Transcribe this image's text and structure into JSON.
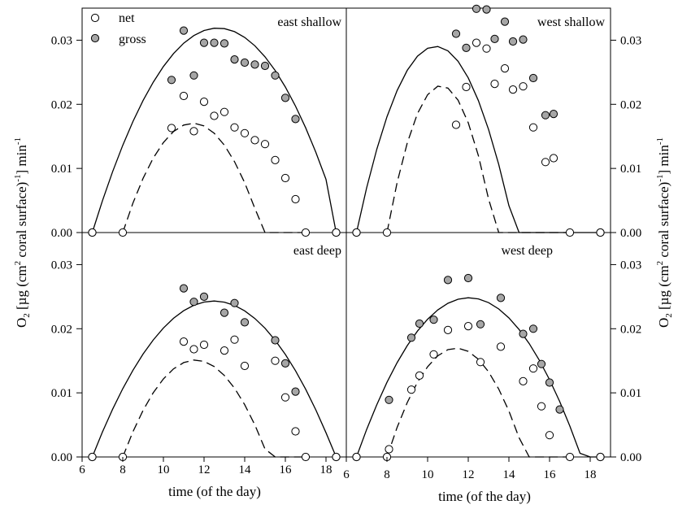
{
  "figure": {
    "ylabel": "O2 [µg (cm2 coral surface)-1] min-1",
    "xlabel_left": "time (of the day)",
    "xlabel_right": "time (of the day)",
    "legend": [
      {
        "name": "net",
        "fill": "#ffffff"
      },
      {
        "name": "gross",
        "fill": "#a6a6a6"
      }
    ]
  },
  "chart_data": [
    {
      "type": "scatter",
      "title": "east shallow",
      "xlim": [
        6,
        19
      ],
      "ylim": [
        0,
        0.035
      ],
      "series": [
        {
          "name": "net",
          "points": [
            [
              6.5,
              0
            ],
            [
              8,
              0
            ],
            [
              10.4,
              0.0163
            ],
            [
              11,
              0.0213
            ],
            [
              11.5,
              0.0158
            ],
            [
              12,
              0.0204
            ],
            [
              12.5,
              0.0182
            ],
            [
              13,
              0.0188
            ],
            [
              13.5,
              0.0164
            ],
            [
              14,
              0.0155
            ],
            [
              14.5,
              0.0144
            ],
            [
              15,
              0.0138
            ],
            [
              15.5,
              0.0113
            ],
            [
              16,
              0.0085
            ],
            [
              16.5,
              0.0052
            ],
            [
              17,
              0
            ],
            [
              18.5,
              0
            ]
          ]
        },
        {
          "name": "gross",
          "points": [
            [
              6.5,
              0
            ],
            [
              10.4,
              0.0238
            ],
            [
              11,
              0.0315
            ],
            [
              11.5,
              0.0245
            ],
            [
              12,
              0.0296
            ],
            [
              12.5,
              0.0296
            ],
            [
              13,
              0.0295
            ],
            [
              13.5,
              0.027
            ],
            [
              14,
              0.0265
            ],
            [
              14.5,
              0.0262
            ],
            [
              15,
              0.026
            ],
            [
              15.5,
              0.0245
            ],
            [
              16,
              0.021
            ],
            [
              16.5,
              0.0177
            ],
            [
              18.5,
              0
            ]
          ]
        }
      ],
      "fits": [
        {
          "series": "gross",
          "style": "solid",
          "x": [
            6.5,
            7,
            7.5,
            8,
            8.5,
            9,
            9.5,
            10,
            10.5,
            11,
            11.5,
            12,
            12.5,
            13,
            13.5,
            14,
            14.5,
            15,
            15.5,
            16,
            16.5,
            17,
            17.5,
            18,
            18.5
          ],
          "y": [
            0,
            0.00496,
            0.00949,
            0.01361,
            0.01731,
            0.02059,
            0.02345,
            0.0259,
            0.02793,
            0.02954,
            0.03073,
            0.03151,
            0.03187,
            0.03181,
            0.03133,
            0.03044,
            0.02913,
            0.0274,
            0.02526,
            0.0227,
            0.01972,
            0.01633,
            0.01252,
            0.00829,
            0
          ]
        },
        {
          "series": "net",
          "style": "dashed",
          "x": [
            8,
            8.5,
            9,
            9.5,
            10,
            10.5,
            11,
            11.5,
            12,
            12.5,
            13,
            13.5,
            14,
            14.5,
            15,
            15.5,
            16,
            16.5,
            17
          ],
          "y": [
            0,
            0.00459,
            0.00846,
            0.01161,
            0.01404,
            0.01576,
            0.01677,
            0.01706,
            0.01663,
            0.01548,
            0.01363,
            0.01105,
            0.00777,
            0.00376,
            0,
            0,
            0,
            0,
            0
          ]
        }
      ]
    },
    {
      "type": "scatter",
      "title": "west shallow",
      "xlim": [
        6,
        19
      ],
      "ylim": [
        0,
        0.035
      ],
      "series": [
        {
          "name": "net",
          "points": [
            [
              6.5,
              0
            ],
            [
              8,
              0
            ],
            [
              11.4,
              0.0168
            ],
            [
              11.9,
              0.0227
            ],
            [
              12.4,
              0.0296
            ],
            [
              12.9,
              0.0287
            ],
            [
              13.3,
              0.0232
            ],
            [
              13.8,
              0.0256
            ],
            [
              14.2,
              0.0223
            ],
            [
              14.7,
              0.0228
            ],
            [
              15.2,
              0.0164
            ],
            [
              15.8,
              0.011
            ],
            [
              16.2,
              0.0116
            ],
            [
              17,
              0
            ],
            [
              18.5,
              0
            ]
          ]
        },
        {
          "name": "gross",
          "points": [
            [
              6.5,
              0
            ],
            [
              11.4,
              0.031
            ],
            [
              11.9,
              0.0288
            ],
            [
              12.4,
              0.0349
            ],
            [
              12.9,
              0.0348
            ],
            [
              13.3,
              0.0302
            ],
            [
              13.8,
              0.0329
            ],
            [
              14.2,
              0.0298
            ],
            [
              14.7,
              0.0301
            ],
            [
              15.2,
              0.0241
            ],
            [
              15.8,
              0.0183
            ],
            [
              16.2,
              0.0185
            ],
            [
              18.5,
              0
            ]
          ]
        }
      ],
      "fits": [
        {
          "series": "gross",
          "style": "solid",
          "x": [
            6.5,
            7,
            7.5,
            8,
            8.5,
            9,
            9.5,
            10,
            10.5,
            11,
            11.5,
            12,
            12.5,
            13,
            13.5,
            14,
            14.5,
            15,
            15.5,
            16,
            16.5,
            17,
            17.5,
            18,
            18.5
          ],
          "y": [
            0,
            0.00698,
            0.013,
            0.01806,
            0.02216,
            0.02531,
            0.0275,
            0.02874,
            0.02902,
            0.02834,
            0.02671,
            0.02412,
            0.02057,
            0.01607,
            0.01062,
            0.0042,
            0,
            0,
            0,
            0,
            0,
            0,
            0,
            0,
            0
          ]
        },
        {
          "series": "net",
          "style": "dashed",
          "x": [
            8,
            8.5,
            9,
            9.5,
            10,
            10.5,
            11,
            11.5,
            12,
            12.5,
            13,
            13.5,
            14,
            14.5,
            15,
            15.5,
            16,
            16.5,
            17
          ],
          "y": [
            0,
            0.0078,
            0.01399,
            0.01855,
            0.0215,
            0.02283,
            0.02254,
            0.02064,
            0.01712,
            0.01198,
            0.00522,
            0,
            0,
            0,
            0,
            0,
            0,
            0,
            0
          ]
        }
      ]
    },
    {
      "type": "scatter",
      "title": "east deep",
      "xlim": [
        6,
        19
      ],
      "ylim": [
        0,
        0.035
      ],
      "series": [
        {
          "name": "net",
          "points": [
            [
              6.5,
              0
            ],
            [
              8,
              0
            ],
            [
              11,
              0.018
            ],
            [
              11.5,
              0.0168
            ],
            [
              12,
              0.0175
            ],
            [
              13,
              0.0166
            ],
            [
              13.5,
              0.0183
            ],
            [
              14,
              0.0142
            ],
            [
              15.5,
              0.015
            ],
            [
              16,
              0.0093
            ],
            [
              16.5,
              0.004
            ],
            [
              17,
              0
            ],
            [
              18.5,
              0
            ]
          ]
        },
        {
          "name": "gross",
          "points": [
            [
              6.5,
              0
            ],
            [
              11,
              0.0263
            ],
            [
              11.5,
              0.0242
            ],
            [
              12,
              0.025
            ],
            [
              13,
              0.0225
            ],
            [
              13.5,
              0.024
            ],
            [
              14,
              0.021
            ],
            [
              15.5,
              0.0182
            ],
            [
              16,
              0.0146
            ],
            [
              16.5,
              0.0102
            ],
            [
              18.5,
              0
            ]
          ]
        }
      ],
      "fits": [
        {
          "series": "gross",
          "style": "solid",
          "x": [
            6.5,
            7,
            7.5,
            8,
            8.5,
            9,
            9.5,
            10,
            10.5,
            11,
            11.5,
            12,
            12.5,
            13,
            13.5,
            14,
            14.5,
            15,
            15.5,
            16,
            16.5,
            17,
            17.5,
            18,
            18.5
          ],
          "y": [
            0,
            0.00389,
            0.00744,
            0.01065,
            0.01352,
            0.01606,
            0.01825,
            0.02011,
            0.02163,
            0.02281,
            0.02366,
            0.02416,
            0.02432,
            0.02415,
            0.02364,
            0.02279,
            0.0216,
            0.02007,
            0.0182,
            0.01599,
            0.01345,
            0.01056,
            0.00734,
            0.00378,
            0
          ]
        },
        {
          "series": "net",
          "style": "dashed",
          "x": [
            8,
            8.5,
            9,
            9.5,
            10,
            10.5,
            11,
            11.5,
            12,
            12.5,
            13,
            13.5,
            14,
            14.5,
            15,
            15.5,
            16,
            16.5,
            17
          ],
          "y": [
            0,
            0.00393,
            0.00727,
            0.01002,
            0.01218,
            0.01375,
            0.01472,
            0.01511,
            0.0149,
            0.0141,
            0.01271,
            0.01073,
            0.00816,
            0.005,
            0.00124,
            0,
            0,
            0,
            0
          ]
        }
      ]
    },
    {
      "type": "scatter",
      "title": "west deep",
      "xlim": [
        6,
        19
      ],
      "ylim": [
        0,
        0.035
      ],
      "series": [
        {
          "name": "net",
          "points": [
            [
              6.5,
              0
            ],
            [
              8,
              0
            ],
            [
              8.1,
              0.0012
            ],
            [
              9.2,
              0.0105
            ],
            [
              9.6,
              0.0127
            ],
            [
              10.3,
              0.016
            ],
            [
              11,
              0.0198
            ],
            [
              12,
              0.0204
            ],
            [
              12.6,
              0.0148
            ],
            [
              13.6,
              0.0172
            ],
            [
              14.7,
              0.0118
            ],
            [
              15.2,
              0.0138
            ],
            [
              15.6,
              0.0079
            ],
            [
              16,
              0.0034
            ],
            [
              17,
              0
            ],
            [
              18.5,
              0
            ]
          ]
        },
        {
          "name": "gross",
          "points": [
            [
              6.5,
              0
            ],
            [
              8.1,
              0.0089
            ],
            [
              9.2,
              0.0186
            ],
            [
              9.6,
              0.0208
            ],
            [
              10.3,
              0.0214
            ],
            [
              11,
              0.0276
            ],
            [
              12,
              0.0279
            ],
            [
              12.6,
              0.0207
            ],
            [
              13.6,
              0.0248
            ],
            [
              14.7,
              0.0192
            ],
            [
              15.2,
              0.02
            ],
            [
              15.6,
              0.0145
            ],
            [
              16,
              0.0116
            ],
            [
              16.5,
              0.0074
            ],
            [
              18.5,
              0
            ]
          ]
        }
      ],
      "fits": [
        {
          "series": "gross",
          "style": "solid",
          "x": [
            6.5,
            7,
            7.5,
            8,
            8.5,
            9,
            9.5,
            10,
            10.5,
            11,
            11.5,
            12,
            12.5,
            13,
            13.5,
            14,
            14.5,
            15,
            15.5,
            16,
            16.5,
            17,
            17.5,
            18,
            18.5
          ],
          "y": [
            0,
            0.00428,
            0.00816,
            0.01164,
            0.01471,
            0.01737,
            0.01963,
            0.02148,
            0.02293,
            0.02397,
            0.0246,
            0.02483,
            0.02465,
            0.02407,
            0.02308,
            0.02169,
            0.01989,
            0.01768,
            0.01507,
            0.01205,
            0.00863,
            0.0048,
            0.00057,
            0,
            0
          ]
        },
        {
          "series": "net",
          "style": "dashed",
          "x": [
            8,
            8.5,
            9,
            9.5,
            10,
            10.5,
            11,
            11.5,
            12,
            12.5,
            13,
            13.5,
            14,
            14.5,
            15,
            15.5,
            16,
            16.5,
            17
          ],
          "y": [
            0,
            0.00462,
            0.0085,
            0.01166,
            0.01408,
            0.01578,
            0.01674,
            0.01697,
            0.01647,
            0.01524,
            0.01328,
            0.01059,
            0.00716,
            0.00301,
            0,
            0,
            0,
            0,
            0
          ]
        }
      ]
    }
  ]
}
